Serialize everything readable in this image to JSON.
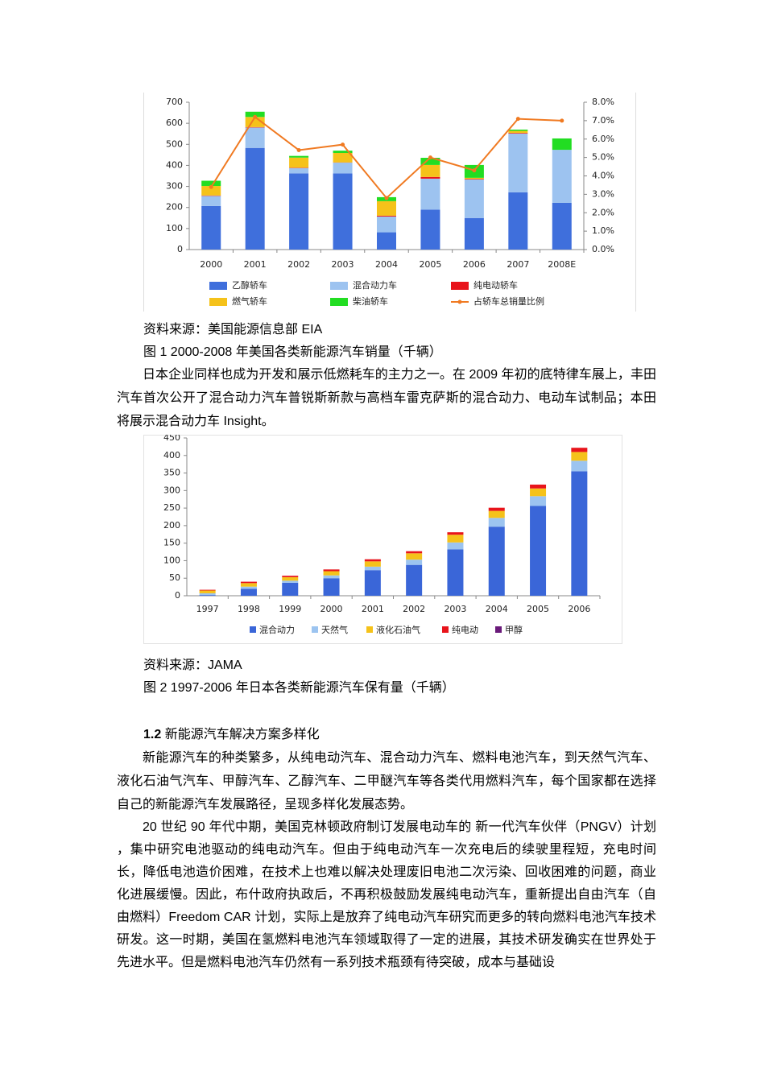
{
  "chart_data": [
    {
      "type": "bar",
      "stacked": true,
      "categories": [
        "2000",
        "2001",
        "2002",
        "2003",
        "2004",
        "2005",
        "2006",
        "2007",
        "2008E"
      ],
      "series": [
        {
          "name": "乙醇轿车",
          "color": "#3f6fdc",
          "values": [
            207,
            483,
            362,
            362,
            82,
            190,
            150,
            272,
            222
          ]
        },
        {
          "name": "混合动力车",
          "color": "#9dc3f0",
          "values": [
            48,
            97,
            25,
            51,
            75,
            147,
            183,
            279,
            252
          ]
        },
        {
          "name": "纯电动轿车",
          "color": "#e8141b",
          "values": [
            2,
            2,
            2,
            1,
            4,
            8,
            3,
            3,
            0
          ]
        },
        {
          "name": "燃气轿车",
          "color": "#f5c21a",
          "values": [
            45,
            48,
            48,
            45,
            69,
            57,
            5,
            10,
            0
          ]
        },
        {
          "name": "柴油轿车",
          "color": "#22dd22",
          "values": [
            25,
            25,
            8,
            11,
            19,
            34,
            61,
            6,
            54
          ]
        },
        {
          "name": "占轿车总销量比例",
          "type": "line",
          "axis": "y2",
          "color": "#f07a22",
          "values": [
            3.4,
            7.2,
            5.4,
            5.7,
            2.8,
            5.0,
            4.3,
            7.1,
            7.0
          ]
        }
      ],
      "ylim": [
        0,
        700
      ],
      "yticks": [
        0,
        100,
        200,
        300,
        400,
        500,
        600,
        700
      ],
      "y2lim": [
        0,
        8
      ],
      "y2ticks": [
        {
          "value": 0,
          "label": "0.0%"
        },
        {
          "value": 1,
          "label": "1.0%"
        },
        {
          "value": 2,
          "label": "2.0%"
        },
        {
          "value": 3,
          "label": "3.0%"
        },
        {
          "value": 4,
          "label": "4.0%"
        },
        {
          "value": 5,
          "label": "5.0%"
        },
        {
          "value": 6,
          "label": "6.0%"
        },
        {
          "value": 7,
          "label": "7.0%"
        },
        {
          "value": 8,
          "label": "8.0%"
        }
      ]
    },
    {
      "type": "bar",
      "stacked": true,
      "categories": [
        "1997",
        "1998",
        "1999",
        "2000",
        "2001",
        "2002",
        "2003",
        "2004",
        "2005",
        "2006"
      ],
      "series": [
        {
          "name": "混合动力",
          "color": "#3a66d8",
          "values": [
            2,
            20,
            37,
            50,
            73,
            88,
            132,
            197,
            256,
            355
          ]
        },
        {
          "name": "天然气",
          "color": "#9cc4f0",
          "values": [
            5,
            6,
            6,
            8,
            10,
            15,
            20,
            25,
            28,
            30
          ]
        },
        {
          "name": "液化石油气",
          "color": "#f5c21a",
          "values": [
            8,
            10,
            10,
            12,
            15,
            18,
            22,
            20,
            22,
            25
          ]
        },
        {
          "name": "纯电动",
          "color": "#e8141b",
          "values": [
            2,
            4,
            4,
            5,
            6,
            6,
            7,
            9,
            11,
            12
          ]
        },
        {
          "name": "甲醇",
          "color": "#6a1a7a",
          "values": [
            0,
            0,
            0,
            0,
            0,
            0,
            0,
            0,
            0,
            0
          ]
        }
      ],
      "ylim": [
        0,
        450
      ],
      "yticks": [
        0,
        50,
        100,
        150,
        200,
        250,
        300,
        350,
        400,
        450
      ]
    }
  ],
  "document": {
    "figure_1": {
      "source": "资料来源：美国能源信息部 EIA",
      "caption": "图 1 2000-2008 年美国各类新能源汽车销量（千辆）"
    },
    "paragraph_1": "日本企业同样也成为开发和展示低燃耗车的主力之一。在 2009 年初的底特律车展上，丰田汽车首次公开了混合动力汽车普锐斯新款与高档车雷克萨斯的混合动力、电动车试制品；本田将展示混合动力车 Insight。",
    "figure_2": {
      "source": "资料来源：JAMA",
      "caption": "图 2 1997-2006 年日本各类新能源汽车保有量（千辆）"
    },
    "section": {
      "number": "1.2",
      "title": "新能源汽车解决方案多样化"
    },
    "paragraphs": [
      "新能源汽车的种类繁多，从纯电动汽车、混合动力汽车、燃料电池汽车，到天然气汽车、液化石油气汽车、甲醇汽车、乙醇汽车、二甲醚汽车等各类代用燃料汽车，每个国家都在选择自己的新能源汽车发展路径，呈现多样化发展态势。",
      "20 世纪 90 年代中期，美国克林顿政府制订发展电动车的 新一代汽车伙伴（PNGV）计划 ，集中研究电池驱动的纯电动汽车。但由于纯电动汽车一次充电后的续驶里程短，充电时间长，降低电池造价困难，在技术上也难以解决处理废旧电池二次污染、回收困难的问题，商业化进展缓慢。因此，布什政府执政后，不再积极鼓励发展纯电动汽车，重新提出自由汽车（自由燃料）Freedom CAR 计划，实际上是放弃了纯电动汽车研究而更多的转向燃料电池汽车技术研发。这一时期，美国在氢燃料电池汽车领域取得了一定的进展，其技术研发确实在世界处于先进水平。但是燃料电池汽车仍然有一系列技术瓶颈有待突破，成本与基础设"
    ]
  }
}
